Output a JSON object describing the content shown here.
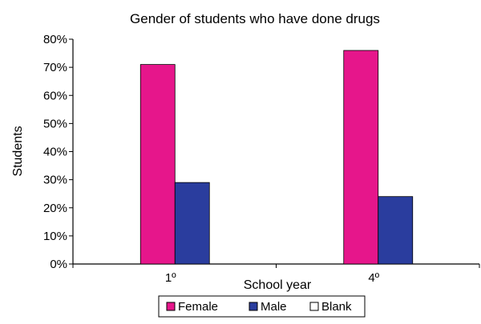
{
  "chart_data": {
    "type": "bar",
    "title": "Gender of students who have done drugs",
    "xlabel": "School year",
    "ylabel": "Students",
    "categories": [
      "1º",
      "4º"
    ],
    "series": [
      {
        "name": "Female",
        "color": "#e6168b",
        "values": [
          71,
          76
        ]
      },
      {
        "name": "Male",
        "color": "#2a3d9e",
        "values": [
          29,
          24
        ]
      },
      {
        "name": "Blank",
        "color": "#ffffff",
        "values": [
          0,
          0
        ]
      }
    ],
    "ylim": [
      0,
      80
    ],
    "yticks": [
      "0%",
      "10%",
      "20%",
      "30%",
      "40%",
      "50%",
      "60%",
      "70%",
      "80%"
    ],
    "grid": false,
    "legend_position": "bottom"
  }
}
